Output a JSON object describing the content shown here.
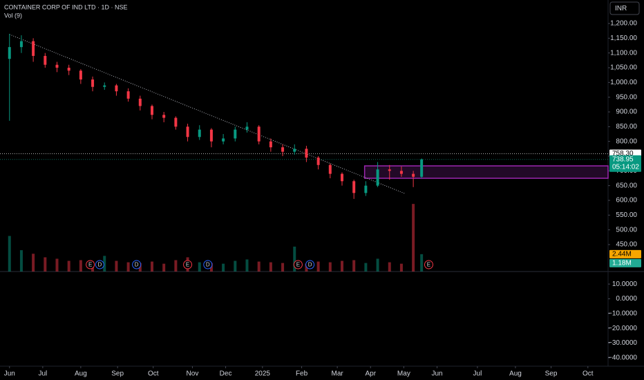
{
  "chart_data": [
    {
      "type": "candlestick",
      "title": "CONTAINER CORP OF IND LTD · 1D · NSE",
      "volume_title": "Vol (9)",
      "currency": "INR",
      "up_color": "#089981",
      "down_color": "#f23645",
      "x": [
        0,
        10,
        20,
        30,
        40,
        50,
        60,
        70,
        80,
        90,
        100,
        110,
        120,
        130,
        140,
        150,
        160,
        170,
        180,
        190,
        200,
        210,
        220,
        230,
        240,
        250,
        260,
        270,
        280,
        290,
        300,
        310,
        320,
        330,
        340,
        347
      ],
      "open": [
        1080,
        1120,
        1140,
        1090,
        1060,
        1050,
        1040,
        1010,
        985,
        990,
        970,
        945,
        920,
        890,
        880,
        850,
        815,
        840,
        800,
        810,
        840,
        850,
        800,
        780,
        765,
        775,
        745,
        720,
        690,
        665,
        625,
        650,
        705,
        700,
        690,
        680
      ],
      "high": [
        1165,
        1160,
        1150,
        1100,
        1070,
        1060,
        1045,
        1020,
        1000,
        995,
        980,
        955,
        925,
        900,
        885,
        860,
        855,
        845,
        825,
        850,
        865,
        855,
        810,
        790,
        790,
        785,
        750,
        725,
        695,
        670,
        665,
        730,
        720,
        715,
        700,
        742
      ],
      "low": [
        870,
        1100,
        1070,
        1050,
        1035,
        1025,
        995,
        970,
        975,
        955,
        935,
        905,
        875,
        865,
        840,
        800,
        805,
        780,
        790,
        800,
        830,
        790,
        765,
        750,
        755,
        730,
        705,
        675,
        650,
        605,
        615,
        645,
        670,
        680,
        645,
        675
      ],
      "close": [
        1120,
        1140,
        1090,
        1060,
        1050,
        1040,
        1010,
        985,
        990,
        970,
        945,
        920,
        890,
        880,
        850,
        815,
        840,
        800,
        810,
        840,
        850,
        800,
        780,
        765,
        775,
        745,
        720,
        690,
        665,
        625,
        650,
        705,
        700,
        690,
        680,
        739
      ],
      "volume": [
        5,
        3,
        2.5,
        2,
        1.8,
        1.5,
        1.6,
        1.4,
        2.2,
        1.5,
        1.3,
        1.2,
        1.4,
        1.1,
        1.6,
        2,
        1.3,
        1.2,
        1.1,
        1.5,
        1.7,
        1.4,
        1.3,
        1.2,
        3.5,
        1.1,
        1.4,
        1.3,
        1.5,
        1.6,
        1.2,
        1.8,
        1.3,
        1.1,
        9.5,
        2.44
      ],
      "volume_ylim": [
        0,
        10
      ],
      "volume_markers": [
        {
          "value": 2.44,
          "label": "2.44M",
          "color": "#f7a600"
        },
        {
          "value": 1.18,
          "label": "1.18M",
          "color": "#22ab94"
        }
      ],
      "xlim": [
        -8,
        504
      ],
      "xticks": [
        {
          "value": 0,
          "label": "Jun"
        },
        {
          "value": 28,
          "label": "Jul"
        },
        {
          "value": 60,
          "label": "Aug"
        },
        {
          "value": 91,
          "label": "Sep"
        },
        {
          "value": 121,
          "label": "Oct"
        },
        {
          "value": 154,
          "label": "Nov"
        },
        {
          "value": 182,
          "label": "Dec"
        },
        {
          "value": 213,
          "label": "2025"
        },
        {
          "value": 246,
          "label": "Feb"
        },
        {
          "value": 276,
          "label": "Mar"
        },
        {
          "value": 304,
          "label": "Apr"
        },
        {
          "value": 332,
          "label": "May"
        },
        {
          "value": 360,
          "label": "Jun"
        },
        {
          "value": 394,
          "label": "Jul"
        },
        {
          "value": 426,
          "label": "Aug"
        },
        {
          "value": 456,
          "label": "Sep"
        },
        {
          "value": 487,
          "label": "Oct"
        }
      ],
      "ylim": [
        358.6,
        1279.7
      ],
      "yticks": [
        {
          "value": 1200,
          "label": "1,200.00"
        },
        {
          "value": 1150,
          "label": "1,150.00"
        },
        {
          "value": 1100,
          "label": "1,100.00"
        },
        {
          "value": 1050,
          "label": "1,050.00"
        },
        {
          "value": 1000,
          "label": "1,000.00"
        },
        {
          "value": 950,
          "label": "950.00"
        },
        {
          "value": 900,
          "label": "900.00"
        },
        {
          "value": 850,
          "label": "850.00"
        },
        {
          "value": 800,
          "label": "800.00"
        },
        {
          "value": 750,
          "label": "750.00"
        },
        {
          "value": 700,
          "label": "700.00"
        },
        {
          "value": 650,
          "label": "650.00"
        },
        {
          "value": 600,
          "label": "600.00"
        },
        {
          "value": 550,
          "label": "550.00"
        },
        {
          "value": 500,
          "label": "500.00"
        },
        {
          "value": 450,
          "label": "450.00"
        }
      ],
      "price_markers": [
        {
          "value": 758.3,
          "label": "758.30",
          "color": "#ffffff"
        },
        {
          "value": 738.95,
          "label": "738.95",
          "sublabel": "05:14:02",
          "color": "#089981"
        }
      ],
      "trendline": {
        "x": [
          0,
          333
        ],
        "y": [
          1163,
          623
        ]
      },
      "box": {
        "x0": 299,
        "ylow": 675,
        "yhigh": 717,
        "color": "#9c27b0"
      },
      "events": [
        {
          "label": "E",
          "x": 68
        },
        {
          "label": "D",
          "x": 76
        },
        {
          "label": "D",
          "x": 107
        },
        {
          "label": "E",
          "x": 150
        },
        {
          "label": "D",
          "x": 167
        },
        {
          "label": "E",
          "x": 243
        },
        {
          "label": "D",
          "x": 253
        },
        {
          "label": "E",
          "x": 353
        }
      ]
    },
    {
      "type": "indicator",
      "ylim": [
        -45.7,
        18.5
      ],
      "yticks": [
        {
          "value": 10,
          "label": "10.0000"
        },
        {
          "value": 0,
          "label": "0.0000"
        },
        {
          "value": -10,
          "label": "−10.0000"
        },
        {
          "value": -20,
          "label": "−20.0000"
        },
        {
          "value": -30,
          "label": "−30.0000"
        },
        {
          "value": -40,
          "label": "−40.0000"
        }
      ]
    }
  ]
}
